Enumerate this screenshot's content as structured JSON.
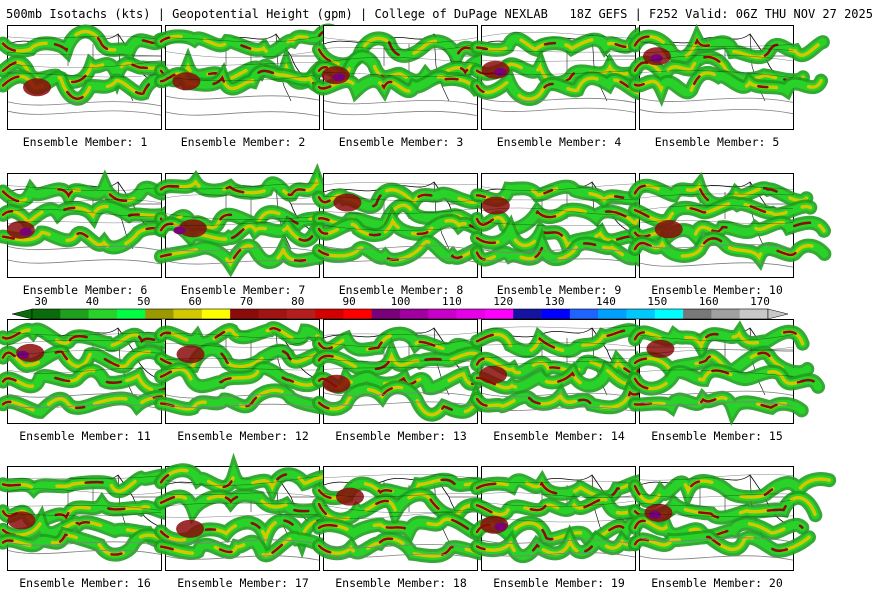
{
  "header": {
    "left_text": "500mb Isotachs (kts) | Geopotential Height (gpm) | College of DuPage NEXLAB",
    "right_text": "18Z GEFS | F252 Valid: 06Z THU NOV 27 2025"
  },
  "panels": [
    {
      "label": "Ensemble Member: 1"
    },
    {
      "label": "Ensemble Member: 2"
    },
    {
      "label": "Ensemble Member: 3"
    },
    {
      "label": "Ensemble Member: 4"
    },
    {
      "label": "Ensemble Member: 5"
    },
    {
      "label": "Ensemble Member: 6"
    },
    {
      "label": "Ensemble Member: 7"
    },
    {
      "label": "Ensemble Member: 8"
    },
    {
      "label": "Ensemble Member: 9"
    },
    {
      "label": "Ensemble Member: 10"
    },
    {
      "label": "Ensemble Member: 11"
    },
    {
      "label": "Ensemble Member: 12"
    },
    {
      "label": "Ensemble Member: 13"
    },
    {
      "label": "Ensemble Member: 14"
    },
    {
      "label": "Ensemble Member: 15"
    },
    {
      "label": "Ensemble Member: 16"
    },
    {
      "label": "Ensemble Member: 17"
    },
    {
      "label": "Ensemble Member: 18"
    },
    {
      "label": "Ensemble Member: 19"
    },
    {
      "label": "Ensemble Member: 20"
    }
  ],
  "colorbar": {
    "ticks": [
      "30",
      "40",
      "50",
      "60",
      "70",
      "80",
      "90",
      "100",
      "110",
      "120",
      "130",
      "140",
      "150",
      "160",
      "170"
    ],
    "colors": [
      "#0a6b0a",
      "#1ea01e",
      "#28d228",
      "#00ff44",
      "#9a9a00",
      "#d2c800",
      "#ffff00",
      "#8b0a0a",
      "#a01414",
      "#b41e1e",
      "#d20000",
      "#ff0000",
      "#780078",
      "#a000a0",
      "#c800c8",
      "#e600e6",
      "#ff00ff",
      "#1414a0",
      "#0000ff",
      "#1e64ff",
      "#00a0ff",
      "#00c8ff",
      "#00ffff",
      "#787878",
      "#a0a0a0",
      "#c8c8c8"
    ]
  }
}
